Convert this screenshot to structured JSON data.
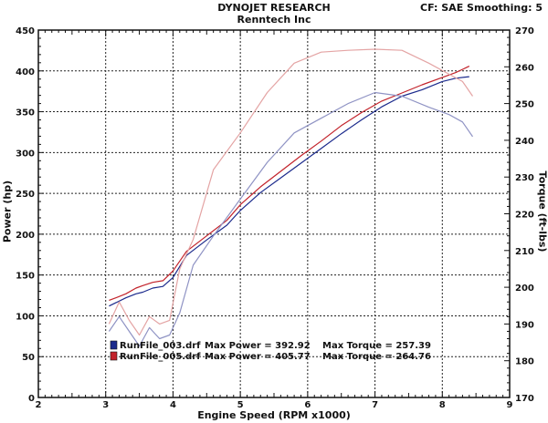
{
  "header": {
    "company": "DYNOJET RESEARCH",
    "customer": "Renntech Inc",
    "settings": "CF: SAE  Smoothing: 5"
  },
  "chart_data": {
    "type": "line",
    "xlabel": "Engine Speed (RPM x1000)",
    "ylabel": "Power (hp)",
    "y2label": "Torque (ft-lbs)",
    "xlim": [
      2,
      9
    ],
    "ylim": [
      0,
      450
    ],
    "y2lim": [
      170,
      270
    ],
    "x_ticks": [
      2,
      3,
      4,
      5,
      6,
      7,
      8,
      9
    ],
    "y_ticks": [
      0,
      50,
      100,
      150,
      200,
      250,
      300,
      350,
      400,
      450
    ],
    "y2_ticks": [
      170,
      180,
      190,
      200,
      210,
      220,
      230,
      240,
      250,
      260,
      270
    ],
    "grid": true,
    "legend": {
      "placement": "bottom-left",
      "entries": [
        {
          "file": "RunFile_003.drf",
          "power_label": "Max Power =",
          "power": "392.92",
          "torque_label": "Max Torque =",
          "torque": "257.39",
          "color": "#1b2a8c"
        },
        {
          "file": "RunFile_005.drf",
          "power_label": "Max Power =",
          "power": "405.77",
          "torque_label": "Max Torque =",
          "torque": "264.76",
          "color": "#c2222a"
        }
      ]
    },
    "series": [
      {
        "run": "RunFile_003.drf",
        "quantity": "power",
        "axis": "left",
        "color": "#1b2a8c",
        "x": [
          3.05,
          3.15,
          3.3,
          3.45,
          3.55,
          3.7,
          3.85,
          4.0,
          4.2,
          4.5,
          4.8,
          5.0,
          5.3,
          5.6,
          5.9,
          6.2,
          6.5,
          6.8,
          7.1,
          7.4,
          7.7,
          8.0,
          8.2,
          8.4
        ],
        "y": [
          112,
          116,
          122,
          127,
          129,
          134,
          136,
          147,
          174,
          193,
          211,
          229,
          251,
          269,
          287,
          305,
          323,
          340,
          356,
          369,
          377,
          387,
          391,
          392.9
        ]
      },
      {
        "run": "RunFile_005.drf",
        "quantity": "power",
        "axis": "left",
        "color": "#c2222a",
        "x": [
          3.05,
          3.15,
          3.3,
          3.45,
          3.55,
          3.7,
          3.85,
          4.0,
          4.2,
          4.5,
          4.8,
          5.0,
          5.3,
          5.6,
          5.9,
          6.2,
          6.5,
          6.8,
          7.1,
          7.4,
          7.7,
          8.0,
          8.2,
          8.4
        ],
        "y": [
          119,
          122,
          127,
          134,
          137,
          141,
          143,
          155,
          179,
          198,
          217,
          236,
          258,
          277,
          296,
          314,
          333,
          349,
          363,
          373,
          383,
          392,
          398,
          405.8
        ]
      },
      {
        "run": "RunFile_003.drf",
        "quantity": "torque",
        "axis": "right",
        "color": "#8f93c4",
        "x": [
          3.05,
          3.2,
          3.35,
          3.5,
          3.65,
          3.8,
          3.95,
          4.1,
          4.3,
          4.6,
          5.0,
          5.4,
          5.8,
          6.2,
          6.6,
          7.0,
          7.4,
          7.8,
          8.1,
          8.3,
          8.45
        ],
        "y": [
          188,
          192,
          188,
          184,
          189,
          186,
          187,
          193,
          206,
          214,
          224,
          234,
          242,
          246,
          250,
          253,
          252,
          249,
          247,
          245,
          241
        ]
      },
      {
        "run": "RunFile_005.drf",
        "quantity": "torque",
        "axis": "right",
        "color": "#e4a4a4",
        "x": [
          3.05,
          3.2,
          3.35,
          3.5,
          3.65,
          3.8,
          3.95,
          4.1,
          4.3,
          4.6,
          5.0,
          5.4,
          5.8,
          6.2,
          6.6,
          7.0,
          7.4,
          7.8,
          8.1,
          8.3,
          8.45
        ],
        "y": [
          190,
          196,
          191,
          187,
          192,
          190,
          191,
          205,
          213,
          232,
          242,
          253,
          261,
          264,
          264.5,
          264.8,
          264.5,
          261,
          258,
          256,
          252
        ]
      }
    ]
  }
}
